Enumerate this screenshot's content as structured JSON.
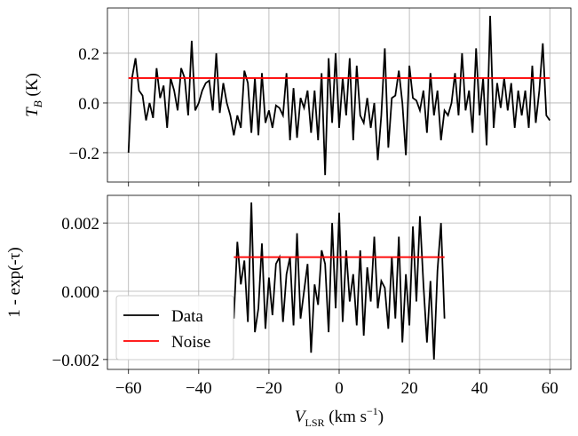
{
  "chart_data": [
    {
      "type": "line",
      "ylabel": {
        "main": "T",
        "sub": "B",
        "rest": " (K)"
      },
      "xlim": [
        -66,
        66
      ],
      "ylim": [
        -0.318,
        0.382
      ],
      "xticks": [
        -60,
        -40,
        -20,
        0,
        20,
        40,
        60
      ],
      "yticks": [
        {
          "value": -0.2,
          "label": "−0.2"
        },
        {
          "value": 0,
          "label": "0.0"
        },
        {
          "value": 0.2,
          "label": "0.2"
        }
      ],
      "grid": true,
      "series": [
        {
          "name": "Data",
          "color": "#000000",
          "x": [
            -60,
            -59,
            -58,
            -57,
            -56,
            -55,
            -54,
            -53,
            -52,
            -51,
            -50,
            -49,
            -48,
            -47,
            -46,
            -45,
            -44,
            -43,
            -42,
            -41,
            -40,
            -39,
            -38,
            -37,
            -36,
            -35,
            -34,
            -33,
            -32,
            -31,
            -30,
            -29,
            -28,
            -27,
            -26,
            -25,
            -24,
            -23,
            -22,
            -21,
            -20,
            -19,
            -18,
            -17,
            -16,
            -15,
            -14,
            -13,
            -12,
            -11,
            -10,
            -9,
            -8,
            -7,
            -6,
            -5,
            -4,
            -3,
            -2,
            -1,
            0,
            1,
            2,
            3,
            4,
            5,
            6,
            7,
            8,
            9,
            10,
            11,
            12,
            13,
            14,
            15,
            16,
            17,
            18,
            19,
            20,
            21,
            22,
            23,
            24,
            25,
            26,
            27,
            28,
            29,
            30,
            31,
            32,
            33,
            34,
            35,
            36,
            37,
            38,
            39,
            40,
            41,
            42,
            43,
            44,
            45,
            46,
            47,
            48,
            49,
            50,
            51,
            52,
            53,
            54,
            55,
            56,
            57,
            58,
            59,
            60
          ],
          "values": [
            -0.2,
            0.1,
            0.18,
            0.05,
            0.03,
            -0.07,
            0.0,
            -0.06,
            0.14,
            0.02,
            0.07,
            -0.1,
            0.1,
            0.05,
            -0.03,
            0.14,
            0.1,
            -0.05,
            0.25,
            -0.03,
            0.0,
            0.05,
            0.08,
            0.09,
            -0.03,
            0.2,
            -0.04,
            0.08,
            0.0,
            -0.05,
            -0.13,
            -0.05,
            -0.1,
            0.13,
            0.08,
            -0.12,
            0.1,
            -0.13,
            0.12,
            -0.08,
            -0.03,
            -0.1,
            -0.01,
            -0.02,
            -0.05,
            0.12,
            -0.15,
            0.06,
            -0.14,
            0.02,
            -0.02,
            0.05,
            -0.12,
            0.05,
            -0.15,
            0.12,
            -0.29,
            0.18,
            -0.08,
            0.2,
            -0.1,
            0.1,
            -0.05,
            0.18,
            -0.15,
            0.15,
            -0.05,
            -0.08,
            0.02,
            -0.1,
            0.0,
            -0.23,
            -0.05,
            0.22,
            -0.18,
            0.02,
            0.03,
            0.13,
            0.0,
            -0.21,
            0.15,
            0.02,
            0.01,
            -0.03,
            0.05,
            -0.12,
            0.12,
            -0.05,
            0.05,
            -0.15,
            -0.03,
            -0.05,
            0.0,
            0.12,
            -0.05,
            0.2,
            -0.03,
            0.05,
            -0.12,
            0.22,
            -0.05,
            0.1,
            -0.17,
            0.35,
            -0.1,
            0.08,
            -0.02,
            0.1,
            -0.03,
            0.08,
            -0.1,
            0.05,
            -0.05,
            0.05,
            -0.1,
            0.15,
            -0.08,
            0.05,
            0.24,
            -0.05,
            -0.07
          ]
        },
        {
          "name": "Noise",
          "color": "#ff0000",
          "x": [
            -60,
            60
          ],
          "values": [
            0.1,
            0.1
          ]
        }
      ]
    },
    {
      "type": "line",
      "ylabel": "1 - exp(-τ)",
      "xlabel": {
        "main": "V",
        "sub": "LSR",
        "mid": " (km s",
        "sup": "−1",
        "end": ")"
      },
      "xlim": [
        -66,
        66
      ],
      "ylim": [
        -0.00229,
        0.00281
      ],
      "xticks": [
        {
          "value": -60,
          "label": "−60"
        },
        {
          "value": -40,
          "label": "−40"
        },
        {
          "value": -20,
          "label": "−20"
        },
        0,
        20,
        40,
        60
      ],
      "yticks": [
        {
          "value": -0.002,
          "label": "−0.002"
        },
        {
          "value": 0,
          "label": "0.000"
        },
        {
          "value": 0.002,
          "label": "0.002"
        }
      ],
      "grid": true,
      "legend": "lower left",
      "series": [
        {
          "name": "Data",
          "color": "#000000",
          "x": [
            -30,
            -29,
            -28,
            -27,
            -26,
            -25,
            -24,
            -23,
            -22,
            -21,
            -20,
            -19,
            -18,
            -17,
            -16,
            -15,
            -14,
            -13,
            -12,
            -11,
            -10,
            -9,
            -8,
            -7,
            -6,
            -5,
            -4,
            -3,
            -2,
            -1,
            0,
            1,
            2,
            3,
            4,
            5,
            6,
            7,
            8,
            9,
            10,
            11,
            12,
            13,
            14,
            15,
            16,
            17,
            18,
            19,
            20,
            21,
            22,
            23,
            24,
            25,
            26,
            27,
            28,
            29,
            30
          ],
          "values": [
            -0.0008,
            0.00145,
            0.0002,
            0.0009,
            -0.0009,
            0.0026,
            -0.0012,
            -0.0005,
            0.0014,
            -0.0011,
            0.0004,
            -0.0007,
            0.0008,
            0.001,
            -0.0009,
            0.0005,
            0.001,
            -0.001,
            0.0017,
            -0.0008,
            0.0,
            0.0008,
            -0.0018,
            0.0002,
            -0.0004,
            0.0012,
            0.0008,
            -0.0012,
            0.002,
            -0.0005,
            0.0023,
            -0.0009,
            0.0012,
            -0.0003,
            0.0005,
            -0.001,
            0.0012,
            -0.0013,
            0.0007,
            -0.0003,
            0.0016,
            -0.0005,
            0.0003,
            0.0001,
            -0.0011,
            0.001,
            -0.0008,
            0.0016,
            -0.0015,
            0.0005,
            -0.001,
            0.0019,
            -0.0003,
            0.0022,
            0.0002,
            -0.0015,
            0.0003,
            -0.002,
            0.0006,
            0.002,
            -0.0008
          ]
        },
        {
          "name": "Noise",
          "color": "#ff0000",
          "x": [
            -30,
            30
          ],
          "values": [
            0.001,
            0.001
          ]
        }
      ]
    }
  ]
}
